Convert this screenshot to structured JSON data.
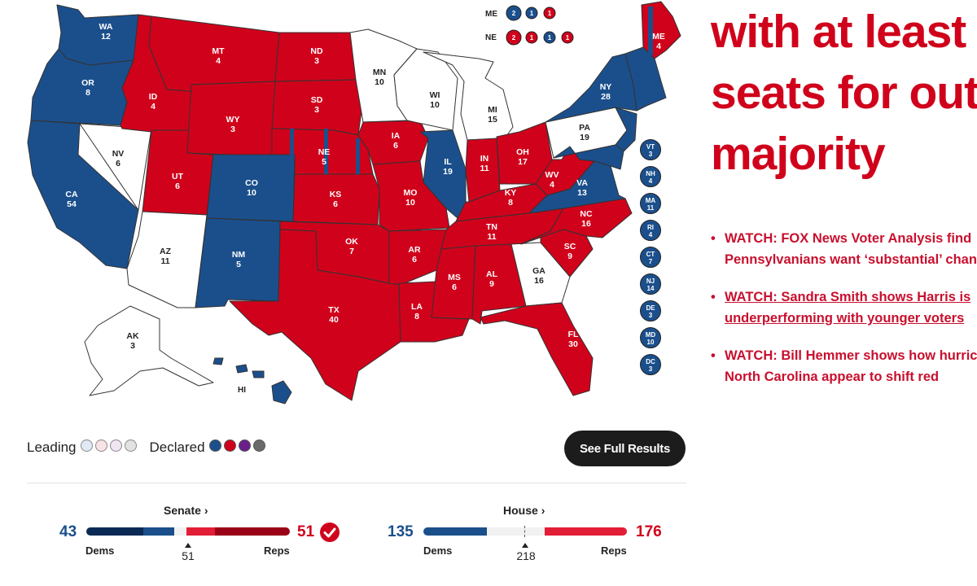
{
  "map": {
    "colors": {
      "dem": "#1b4f8c",
      "rep": "#d0021b",
      "undecided": "#ffffff",
      "border": "#333333"
    },
    "states": {
      "wa": {
        "abbr": "WA",
        "ev": "12",
        "winner": "dem"
      },
      "or": {
        "abbr": "OR",
        "ev": "8",
        "winner": "dem"
      },
      "ca": {
        "abbr": "CA",
        "ev": "54",
        "winner": "dem"
      },
      "nv": {
        "abbr": "NV",
        "ev": "6",
        "winner": "undecided"
      },
      "id": {
        "abbr": "ID",
        "ev": "4",
        "winner": "rep"
      },
      "mt": {
        "abbr": "MT",
        "ev": "4",
        "winner": "rep"
      },
      "wy": {
        "abbr": "WY",
        "ev": "3",
        "winner": "rep"
      },
      "ut": {
        "abbr": "UT",
        "ev": "6",
        "winner": "rep"
      },
      "az": {
        "abbr": "AZ",
        "ev": "11",
        "winner": "undecided"
      },
      "co": {
        "abbr": "CO",
        "ev": "10",
        "winner": "dem"
      },
      "nm": {
        "abbr": "NM",
        "ev": "5",
        "winner": "dem"
      },
      "nd": {
        "abbr": "ND",
        "ev": "3",
        "winner": "rep"
      },
      "sd": {
        "abbr": "SD",
        "ev": "3",
        "winner": "rep"
      },
      "ne": {
        "abbr": "NE",
        "ev": "5",
        "winner": "rep"
      },
      "ks": {
        "abbr": "KS",
        "ev": "6",
        "winner": "rep"
      },
      "ok": {
        "abbr": "OK",
        "ev": "7",
        "winner": "rep"
      },
      "tx": {
        "abbr": "TX",
        "ev": "40",
        "winner": "rep"
      },
      "mn": {
        "abbr": "MN",
        "ev": "10",
        "winner": "undecided"
      },
      "ia": {
        "abbr": "IA",
        "ev": "6",
        "winner": "rep"
      },
      "mo": {
        "abbr": "MO",
        "ev": "10",
        "winner": "rep"
      },
      "ar": {
        "abbr": "AR",
        "ev": "6",
        "winner": "rep"
      },
      "la": {
        "abbr": "LA",
        "ev": "8",
        "winner": "rep"
      },
      "wi": {
        "abbr": "WI",
        "ev": "10",
        "winner": "undecided"
      },
      "il": {
        "abbr": "IL",
        "ev": "19",
        "winner": "dem"
      },
      "mi": {
        "abbr": "MI",
        "ev": "15",
        "winner": "undecided"
      },
      "in": {
        "abbr": "IN",
        "ev": "11",
        "winner": "rep"
      },
      "oh": {
        "abbr": "OH",
        "ev": "17",
        "winner": "rep"
      },
      "ky": {
        "abbr": "KY",
        "ev": "8",
        "winner": "rep"
      },
      "tn": {
        "abbr": "TN",
        "ev": "11",
        "winner": "rep"
      },
      "ms": {
        "abbr": "MS",
        "ev": "6",
        "winner": "rep"
      },
      "al": {
        "abbr": "AL",
        "ev": "9",
        "winner": "rep"
      },
      "ga": {
        "abbr": "GA",
        "ev": "16",
        "winner": "undecided"
      },
      "fl": {
        "abbr": "FL",
        "ev": "30",
        "winner": "rep"
      },
      "sc": {
        "abbr": "SC",
        "ev": "9",
        "winner": "rep"
      },
      "nc": {
        "abbr": "NC",
        "ev": "16",
        "winner": "rep"
      },
      "va": {
        "abbr": "VA",
        "ev": "13",
        "winner": "dem"
      },
      "wv": {
        "abbr": "WV",
        "ev": "4",
        "winner": "rep"
      },
      "pa": {
        "abbr": "PA",
        "ev": "19",
        "winner": "undecided"
      },
      "ny": {
        "abbr": "NY",
        "ev": "28",
        "winner": "dem"
      },
      "me": {
        "abbr": "ME",
        "ev": "4",
        "winner": "rep"
      },
      "ak": {
        "abbr": "AK",
        "ev": "3",
        "winner": "undecided"
      },
      "hi": {
        "abbr": "HI",
        "ev": "",
        "winner": "dem"
      }
    },
    "splits": {
      "me": {
        "label": "ME",
        "dots": [
          {
            "n": "2",
            "c": "dem"
          },
          {
            "n": "1",
            "c": "dem"
          },
          {
            "n": "1",
            "c": "rep"
          }
        ]
      },
      "ne": {
        "label": "NE",
        "dots": [
          {
            "n": "2",
            "c": "rep"
          },
          {
            "n": "1",
            "c": "rep"
          },
          {
            "n": "1",
            "c": "dem"
          },
          {
            "n": "1",
            "c": "rep"
          }
        ]
      }
    },
    "small_states": [
      {
        "abbr": "VT",
        "ev": "3",
        "winner": "dem"
      },
      {
        "abbr": "NH",
        "ev": "4",
        "winner": "dem"
      },
      {
        "abbr": "MA",
        "ev": "11",
        "winner": "dem"
      },
      {
        "abbr": "RI",
        "ev": "4",
        "winner": "dem"
      },
      {
        "abbr": "CT",
        "ev": "7",
        "winner": "dem"
      },
      {
        "abbr": "NJ",
        "ev": "14",
        "winner": "dem"
      },
      {
        "abbr": "DE",
        "ev": "3",
        "winner": "dem"
      },
      {
        "abbr": "MD",
        "ev": "10",
        "winner": "dem"
      },
      {
        "abbr": "DC",
        "ev": "3",
        "winner": "dem"
      }
    ]
  },
  "headline": {
    "line1": "with at least",
    "line2": "seats for out",
    "line3": "majority"
  },
  "news": [
    {
      "line1": "WATCH: FOX News Voter Analysis find",
      "line2": "Pennsylvanians want ‘substantial’ chan"
    },
    {
      "line1": "WATCH: Sandra Smith shows Harris is",
      "line2": "underperforming with younger voters"
    },
    {
      "line1": "WATCH: Bill Hemmer shows how hurric",
      "line2": "North Carolina appear to shift red"
    }
  ],
  "legend": {
    "leading_label": "Leading",
    "declared_label": "Declared",
    "leading_colors": [
      "#dfeaf6",
      "#f8e3e5",
      "#efe6f1",
      "#e2e2e2"
    ],
    "declared_colors": [
      "#1b4f8c",
      "#d0021b",
      "#6a1f8a",
      "#6b6b6b"
    ]
  },
  "full_results_button": "See Full Results",
  "senate": {
    "title": "Senate",
    "arrow": "›",
    "dem_count": "43",
    "rep_count": "51",
    "dem_label": "Dems",
    "rep_label": "Reps",
    "majority": "51",
    "total": 100,
    "dem_seats": 43,
    "rep_seats": 51,
    "called": true
  },
  "house": {
    "title": "House",
    "arrow": "›",
    "dem_count": "135",
    "rep_count": "176",
    "dem_label": "Dems",
    "rep_label": "Reps",
    "majority": "218",
    "total": 435,
    "dem_seats": 135,
    "rep_seats": 176,
    "called": false
  }
}
